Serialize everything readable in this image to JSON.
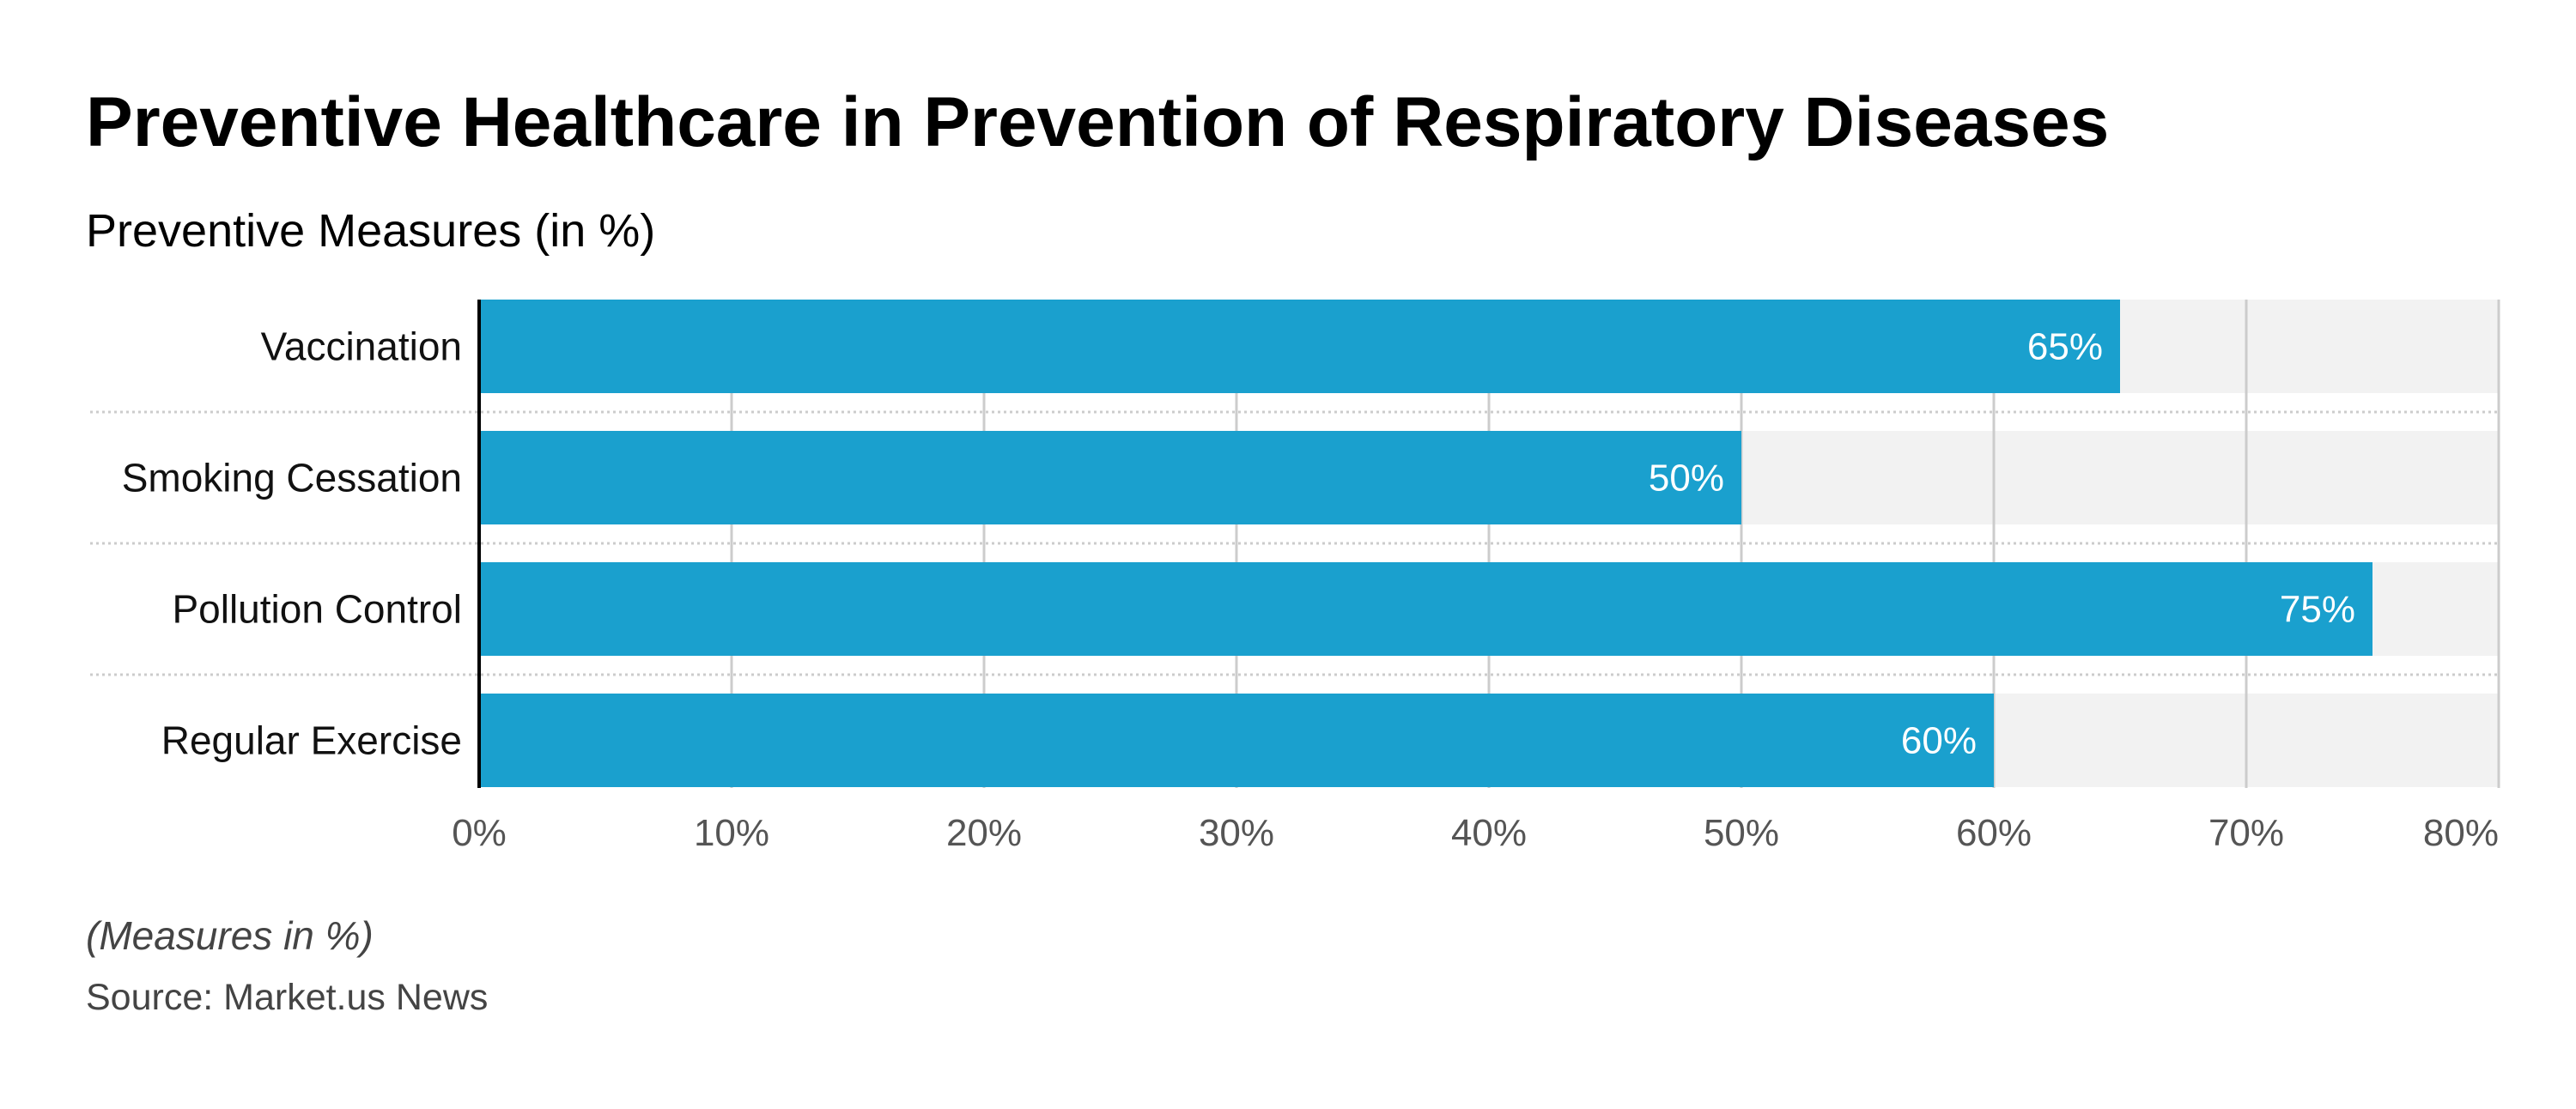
{
  "title": "Preventive Healthcare in Prevention of Respiratory Diseases",
  "subtitle": "Preventive Measures (in %)",
  "note": "(Measures in %)",
  "source": "Source: Market.us News",
  "colors": {
    "bar": "#1aa0ce",
    "track": "#f2f2f2",
    "gridline": "#cccccc",
    "separator": "#cccccc",
    "axis": "#000000",
    "category_text": "#111111",
    "tick_text": "#555555",
    "value_label_text": "#ffffff"
  },
  "chart_data": {
    "type": "bar",
    "orientation": "horizontal",
    "categories": [
      "Vaccination",
      "Smoking Cessation",
      "Pollution Control",
      "Regular Exercise"
    ],
    "values": [
      65,
      50,
      75,
      60
    ],
    "value_labels": [
      "65%",
      "50%",
      "75%",
      "60%"
    ],
    "xlim": [
      0,
      80
    ],
    "xticks": [
      0,
      10,
      20,
      30,
      40,
      50,
      60,
      70,
      80
    ],
    "xtick_labels": [
      "0%",
      "10%",
      "20%",
      "30%",
      "40%",
      "50%",
      "60%",
      "70%",
      "80%"
    ],
    "grid": true,
    "legend": "none"
  }
}
